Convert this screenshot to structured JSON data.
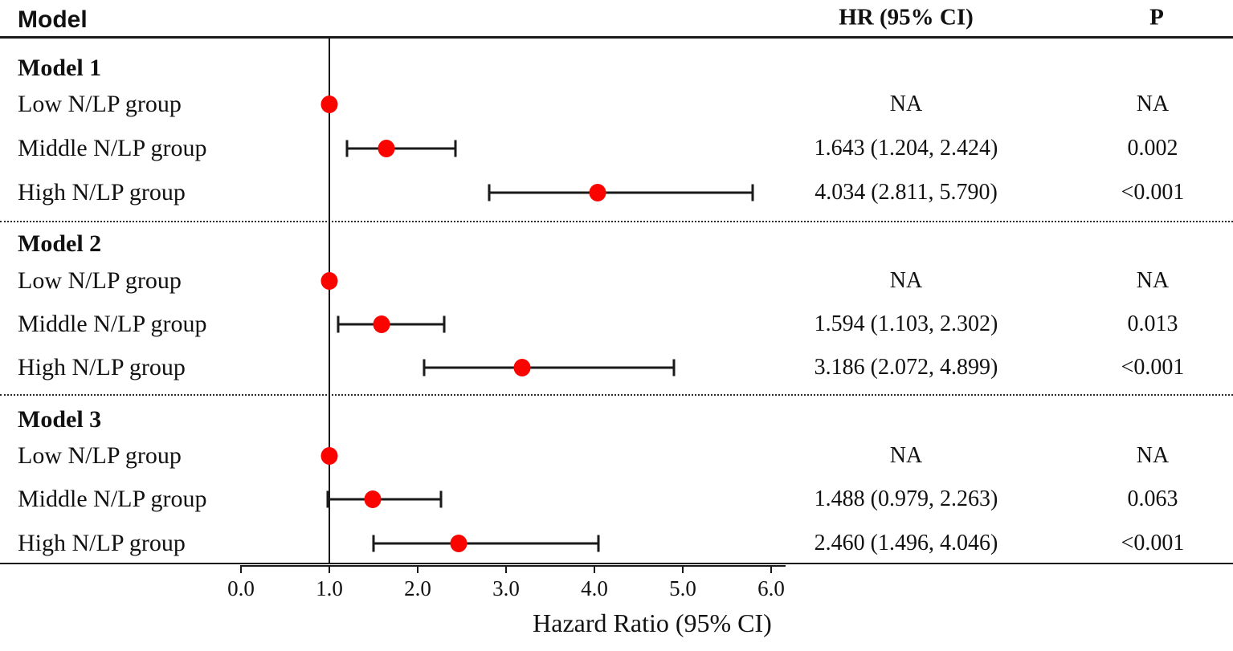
{
  "header": {
    "model_label": "Model",
    "hr_label": "HR (95% CI)",
    "p_label": "P"
  },
  "axis": {
    "title": "Hazard Ratio (95% CI)",
    "tick_labels": [
      "0.0",
      "1.0",
      "2.0",
      "3.0",
      "4.0",
      "5.0",
      "6.0"
    ],
    "tick_values": [
      0,
      1,
      2,
      3,
      4,
      5,
      6
    ],
    "min": 0,
    "max": 6,
    "reference_value": 1.0
  },
  "colors": {
    "marker": "#fa0400",
    "line": "#1a1a1a"
  },
  "chart_data": {
    "type": "forest",
    "xlabel": "Hazard Ratio (95% CI)",
    "xlim": [
      0,
      6.6
    ],
    "x_ticks": [
      0,
      1,
      2,
      3,
      4,
      5,
      6
    ],
    "reference_line": 1.0,
    "columns": [
      "Model",
      "HR (95% CI)",
      "P"
    ],
    "groups": [
      {
        "title": "Model 1",
        "rows": [
          {
            "label": "Low N/LP group",
            "hr": 1.0,
            "ci_low": null,
            "ci_high": null,
            "hr_text": "NA",
            "p_text": "NA"
          },
          {
            "label": "Middle N/LP group",
            "hr": 1.643,
            "ci_low": 1.204,
            "ci_high": 2.424,
            "hr_text": "1.643 (1.204, 2.424)",
            "p_text": "0.002"
          },
          {
            "label": "High N/LP group",
            "hr": 4.034,
            "ci_low": 2.811,
            "ci_high": 5.79,
            "hr_text": "4.034 (2.811, 5.790)",
            "p_text": "<0.001"
          }
        ]
      },
      {
        "title": "Model 2",
        "rows": [
          {
            "label": "Low N/LP group",
            "hr": 1.0,
            "ci_low": null,
            "ci_high": null,
            "hr_text": "NA",
            "p_text": "NA"
          },
          {
            "label": "Middle N/LP group",
            "hr": 1.594,
            "ci_low": 1.103,
            "ci_high": 2.302,
            "hr_text": "1.594 (1.103, 2.302)",
            "p_text": "0.013"
          },
          {
            "label": "High N/LP group",
            "hr": 3.186,
            "ci_low": 2.072,
            "ci_high": 4.899,
            "hr_text": "3.186 (2.072, 4.899)",
            "p_text": "<0.001"
          }
        ]
      },
      {
        "title": "Model 3",
        "rows": [
          {
            "label": "Low N/LP group",
            "hr": 1.0,
            "ci_low": null,
            "ci_high": null,
            "hr_text": "NA",
            "p_text": "NA"
          },
          {
            "label": "Middle N/LP group",
            "hr": 1.488,
            "ci_low": 0.979,
            "ci_high": 2.263,
            "hr_text": "1.488 (0.979, 2.263)",
            "p_text": "0.063"
          },
          {
            "label": "High N/LP group",
            "hr": 2.46,
            "ci_low": 1.496,
            "ci_high": 4.046,
            "hr_text": "2.460 (1.496, 4.046)",
            "p_text": "<0.001"
          }
        ]
      }
    ]
  }
}
